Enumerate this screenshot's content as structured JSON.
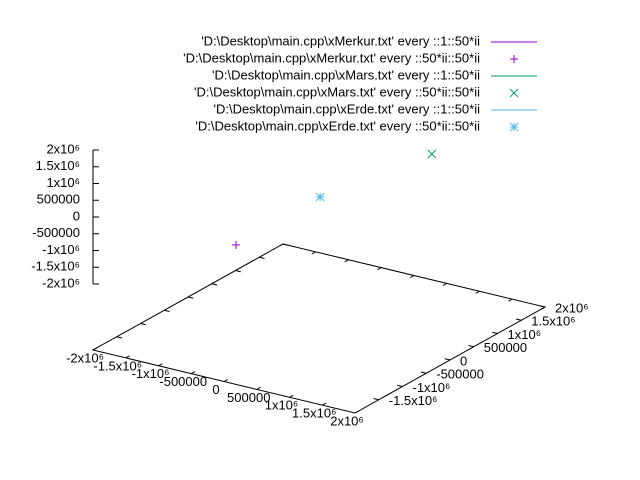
{
  "chart_data": {
    "type": "scatter3d",
    "xlim": [
      -2000000,
      2000000
    ],
    "ylim": [
      -2000000,
      2000000
    ],
    "zlim": [
      -2000000,
      2000000
    ],
    "xticks": [
      {
        "value": -2000000,
        "label": "-2x10⁶"
      },
      {
        "value": -1500000,
        "label": "-1.5x10⁶"
      },
      {
        "value": -1000000,
        "label": "-1x10⁶"
      },
      -500000,
      0,
      500000,
      {
        "value": 1000000,
        "label": "1x10⁶"
      },
      {
        "value": 1500000,
        "label": "1.5x10⁶"
      },
      {
        "value": 2000000,
        "label": "2x10⁶"
      }
    ],
    "yticks": [
      {
        "value": -1500000,
        "label": "-1.5x10⁶"
      },
      {
        "value": -1000000,
        "label": "-1x10⁶"
      },
      -500000,
      0,
      500000,
      {
        "value": 1000000,
        "label": "1x10⁶"
      },
      {
        "value": 1500000,
        "label": "1.5x10⁶"
      },
      {
        "value": 2000000,
        "label": "2x10⁶"
      }
    ],
    "zticks": [
      {
        "value": 2000000,
        "label": "2x10⁶"
      },
      {
        "value": 1500000,
        "label": "1.5x10⁶"
      },
      {
        "value": 1000000,
        "label": "1x10⁶"
      },
      500000,
      0,
      -500000,
      {
        "value": -1000000,
        "label": "-1x10⁶"
      },
      {
        "value": -1500000,
        "label": "-1.5x10⁶"
      },
      {
        "value": -2000000,
        "label": "-2x10⁶"
      }
    ],
    "series": [
      {
        "name": "'D:\\Desktop\\main.cpp\\xMerkur.txt' every ::1::50*ii",
        "color": "#9400d3",
        "style": "lines",
        "x": [],
        "y": [],
        "z": []
      },
      {
        "name": "'D:\\Desktop\\main.cpp\\xMerkur.txt' every ::50*ii::50*ii",
        "color": "#9400d3",
        "style": "points",
        "marker": "plus",
        "x": [
          60000
        ],
        "y": [
          -1830000
        ],
        "z": [
          0
        ]
      },
      {
        "name": "'D:\\Desktop\\main.cpp\\xMars.txt' every ::1::50*ii",
        "color": "#009e73",
        "style": "lines",
        "x": [],
        "y": [],
        "z": []
      },
      {
        "name": "'D:\\Desktop\\main.cpp\\xMars.txt' every ::50*ii::50*ii",
        "color": "#009e73",
        "style": "points",
        "marker": "cross",
        "x": [
          410000
        ],
        "y": [
          1810000
        ],
        "z": [
          0
        ]
      },
      {
        "name": "'D:\\Desktop\\main.cpp\\xErde.txt' every ::1::50*ii",
        "color": "#56b4e9",
        "style": "lines",
        "x": [],
        "y": [],
        "z": []
      },
      {
        "name": "'D:\\Desktop\\main.cpp\\xErde.txt' every ::50*ii::50*ii",
        "color": "#56b4e9",
        "style": "points",
        "marker": "star",
        "x": [
          40000
        ],
        "y": [
          -32000
        ],
        "z": [
          0
        ]
      }
    ]
  }
}
